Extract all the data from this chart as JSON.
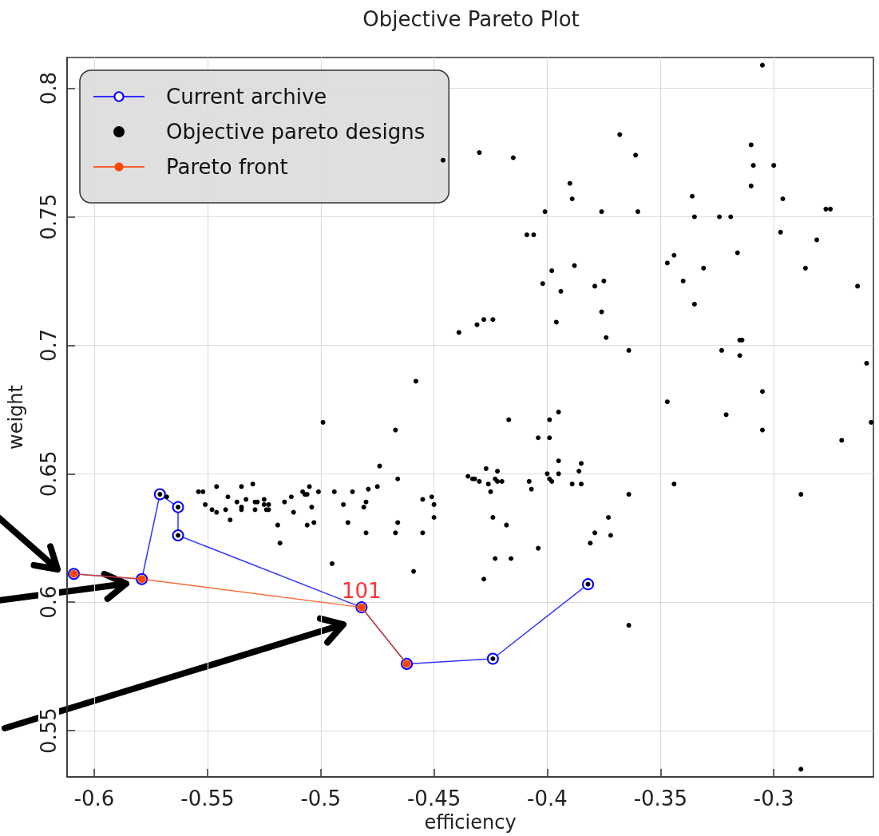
{
  "chart_data": {
    "type": "scatter",
    "title": "Objective Pareto Plot",
    "xlabel": "efficiency",
    "ylabel": "weight",
    "xlim": [
      -0.612,
      -0.256
    ],
    "ylim": [
      0.532,
      0.812
    ],
    "xticks": [
      -0.6,
      -0.55,
      -0.5,
      -0.45,
      -0.4,
      -0.35,
      -0.3
    ],
    "yticks": [
      0.55,
      0.6,
      0.65,
      0.7,
      0.75,
      0.8
    ],
    "grid": true,
    "legend": "top left",
    "annotations": [
      {
        "text": "101",
        "x": -0.482,
        "y": 0.598
      }
    ],
    "series": [
      {
        "name": "Current archive",
        "type": "line",
        "marker": "circle",
        "color": "#0000ff",
        "x": [
          -0.609,
          -0.579,
          -0.571,
          -0.563,
          -0.563,
          -0.482,
          -0.462,
          -0.424,
          -0.382
        ],
        "values": [
          0.611,
          0.609,
          0.642,
          0.637,
          0.626,
          0.598,
          0.576,
          0.578,
          0.607
        ]
      },
      {
        "name": "Objective pareto designs",
        "type": "scatter",
        "marker": "circle",
        "color": "#000000",
        "x": [
          -0.446,
          -0.43,
          -0.415,
          -0.39,
          -0.389,
          -0.401,
          -0.376,
          -0.409,
          -0.406,
          -0.388,
          -0.398,
          -0.402,
          -0.394,
          -0.379,
          -0.375,
          -0.376,
          -0.374,
          -0.439,
          -0.431,
          -0.428,
          -0.424,
          -0.396,
          -0.458,
          -0.417,
          -0.399,
          -0.395,
          -0.499,
          -0.467,
          -0.305,
          -0.368,
          -0.361,
          -0.31,
          -0.309,
          -0.3,
          -0.31,
          -0.336,
          -0.296,
          -0.36,
          -0.335,
          -0.324,
          -0.319,
          -0.277,
          -0.275,
          -0.297,
          -0.281,
          -0.344,
          -0.347,
          -0.316,
          -0.331,
          -0.286,
          -0.34,
          -0.263,
          -0.335,
          -0.364,
          -0.315,
          -0.314,
          -0.323,
          -0.315,
          -0.259,
          -0.305,
          -0.347,
          -0.321,
          -0.257,
          -0.305,
          -0.27,
          -0.344,
          -0.364,
          -0.288,
          -0.373,
          -0.379,
          -0.372,
          -0.381,
          -0.364,
          -0.288,
          -0.404,
          -0.399,
          -0.474,
          -0.395,
          -0.385,
          -0.466,
          -0.427,
          -0.422,
          -0.435,
          -0.433,
          -0.432,
          -0.43,
          -0.423,
          -0.422,
          -0.42,
          -0.426,
          -0.425,
          -0.4,
          -0.399,
          -0.398,
          -0.395,
          -0.386,
          -0.389,
          -0.385,
          -0.408,
          -0.407,
          -0.494,
          -0.486,
          -0.479,
          -0.475,
          -0.49,
          -0.481,
          -0.48,
          -0.488,
          -0.48,
          -0.467,
          -0.466,
          -0.455,
          -0.451,
          -0.45,
          -0.45,
          -0.455,
          -0.459,
          -0.495,
          -0.424,
          -0.418,
          -0.428,
          -0.423,
          -0.416,
          -0.404,
          -0.568,
          -0.554,
          -0.552,
          -0.546,
          -0.535,
          -0.53,
          -0.505,
          -0.508,
          -0.507,
          -0.506,
          -0.501,
          -0.541,
          -0.533,
          -0.537,
          -0.529,
          -0.528,
          -0.525,
          -0.535,
          -0.535,
          -0.529,
          -0.525,
          -0.523,
          -0.524,
          -0.523,
          -0.516,
          -0.513,
          -0.512,
          -0.504,
          -0.551,
          -0.548,
          -0.546,
          -0.542,
          -0.54,
          -0.519,
          -0.506,
          -0.503,
          -0.518,
          -0.571,
          -0.563,
          -0.563,
          -0.424,
          -0.382
        ],
        "values": [
          0.772,
          0.775,
          0.773,
          0.763,
          0.757,
          0.752,
          0.752,
          0.743,
          0.743,
          0.731,
          0.729,
          0.724,
          0.721,
          0.723,
          0.725,
          0.713,
          0.703,
          0.705,
          0.708,
          0.71,
          0.71,
          0.709,
          0.686,
          0.671,
          0.671,
          0.674,
          0.67,
          0.667,
          0.809,
          0.782,
          0.774,
          0.778,
          0.77,
          0.77,
          0.762,
          0.758,
          0.757,
          0.752,
          0.75,
          0.75,
          0.75,
          0.753,
          0.753,
          0.744,
          0.741,
          0.735,
          0.732,
          0.736,
          0.73,
          0.73,
          0.725,
          0.723,
          0.716,
          0.698,
          0.702,
          0.702,
          0.698,
          0.696,
          0.693,
          0.682,
          0.678,
          0.673,
          0.67,
          0.667,
          0.663,
          0.646,
          0.642,
          0.642,
          0.633,
          0.627,
          0.626,
          0.623,
          0.591,
          0.535,
          0.664,
          0.664,
          0.653,
          0.655,
          0.654,
          0.648,
          0.652,
          0.651,
          0.649,
          0.648,
          0.648,
          0.647,
          0.648,
          0.647,
          0.647,
          0.646,
          0.643,
          0.65,
          0.648,
          0.647,
          0.65,
          0.651,
          0.646,
          0.646,
          0.647,
          0.644,
          0.643,
          0.643,
          0.644,
          0.645,
          0.638,
          0.637,
          0.639,
          0.631,
          0.627,
          0.627,
          0.631,
          0.64,
          0.641,
          0.638,
          0.633,
          0.627,
          0.612,
          0.615,
          0.633,
          0.63,
          0.609,
          0.617,
          0.617,
          0.621,
          0.641,
          0.643,
          0.643,
          0.645,
          0.645,
          0.646,
          0.645,
          0.643,
          0.642,
          0.642,
          0.643,
          0.641,
          0.64,
          0.639,
          0.639,
          0.639,
          0.64,
          0.637,
          0.636,
          0.636,
          0.638,
          0.638,
          0.636,
          0.636,
          0.639,
          0.641,
          0.635,
          0.637,
          0.638,
          0.636,
          0.635,
          0.636,
          0.632,
          0.63,
          0.63,
          0.631,
          0.623,
          0.642,
          0.637,
          0.626,
          0.578,
          0.607
        ]
      },
      {
        "name": "Pareto front",
        "type": "line",
        "marker": "circle",
        "color": "#ff4500",
        "x": [
          -0.609,
          -0.579,
          -0.482,
          -0.462
        ],
        "values": [
          0.611,
          0.609,
          0.598,
          0.576
        ]
      }
    ]
  }
}
